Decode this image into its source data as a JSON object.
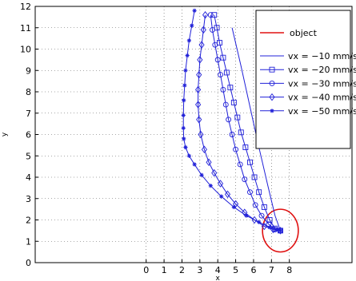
{
  "chart_data": {
    "type": "line",
    "title": "",
    "xlabel": "x",
    "ylabel": "y",
    "xlim": [
      -6.2,
      11.5
    ],
    "ylim": [
      0,
      12
    ],
    "xticks": [
      0,
      1,
      2,
      3,
      4,
      5,
      6,
      7,
      8
    ],
    "yticks": [
      0,
      1,
      2,
      3,
      4,
      5,
      6,
      7,
      8,
      9,
      10,
      11,
      12
    ],
    "grid": true,
    "legend_position": "top-right",
    "colors": {
      "series": "#2020d8",
      "object": "#e01010"
    },
    "object": {
      "name": "object",
      "shape": "circle",
      "center": [
        7.5,
        1.5
      ],
      "radius": 1.0
    },
    "series": [
      {
        "name": "vx = −10 mm/s",
        "marker": "none",
        "x": [
          4.8,
          5.3,
          5.8,
          6.3,
          6.8,
          7.2,
          7.5
        ],
        "y": [
          11.0,
          9.2,
          7.3,
          5.4,
          3.6,
          2.2,
          1.5
        ]
      },
      {
        "name": "vx = −20 mm/s",
        "marker": "square",
        "x": [
          3.8,
          3.95,
          4.1,
          4.3,
          4.5,
          4.7,
          4.9,
          5.1,
          5.3,
          5.55,
          5.8,
          6.05,
          6.3,
          6.6,
          6.9,
          7.2,
          7.5
        ],
        "y": [
          11.6,
          11.0,
          10.3,
          9.6,
          8.9,
          8.2,
          7.5,
          6.8,
          6.1,
          5.4,
          4.7,
          4.0,
          3.3,
          2.6,
          2.0,
          1.6,
          1.5
        ]
      },
      {
        "name": "vx = −30 mm/s",
        "marker": "circle",
        "x": [
          3.6,
          3.7,
          3.85,
          4.0,
          4.15,
          4.3,
          4.45,
          4.6,
          4.8,
          5.0,
          5.25,
          5.5,
          5.8,
          6.1,
          6.45,
          6.85,
          7.2,
          7.5
        ],
        "y": [
          11.6,
          10.9,
          10.2,
          9.5,
          8.8,
          8.1,
          7.4,
          6.7,
          6.0,
          5.3,
          4.6,
          3.9,
          3.3,
          2.7,
          2.2,
          1.8,
          1.55,
          1.5
        ]
      },
      {
        "name": "vx = −40 mm/s",
        "marker": "diamond",
        "x": [
          3.3,
          3.2,
          3.1,
          3.0,
          2.95,
          2.9,
          2.9,
          2.95,
          3.05,
          3.25,
          3.5,
          3.8,
          4.15,
          4.55,
          5.0,
          5.5,
          6.05,
          6.6,
          7.1,
          7.5
        ],
        "y": [
          11.6,
          10.9,
          10.2,
          9.5,
          8.8,
          8.1,
          7.4,
          6.7,
          6.0,
          5.3,
          4.7,
          4.2,
          3.7,
          3.2,
          2.75,
          2.35,
          2.0,
          1.7,
          1.55,
          1.5
        ]
      },
      {
        "name": "vx = −50 mm/s",
        "marker": "star",
        "x": [
          2.7,
          2.55,
          2.4,
          2.3,
          2.2,
          2.15,
          2.1,
          2.08,
          2.08,
          2.1,
          2.2,
          2.4,
          2.7,
          3.1,
          3.6,
          4.2,
          4.9,
          5.6,
          6.3,
          6.9,
          7.3,
          7.5
        ],
        "y": [
          11.8,
          11.1,
          10.4,
          9.7,
          9.0,
          8.3,
          7.6,
          6.9,
          6.3,
          5.8,
          5.4,
          5.0,
          4.6,
          4.1,
          3.6,
          3.1,
          2.6,
          2.2,
          1.9,
          1.65,
          1.55,
          1.5
        ]
      }
    ]
  }
}
